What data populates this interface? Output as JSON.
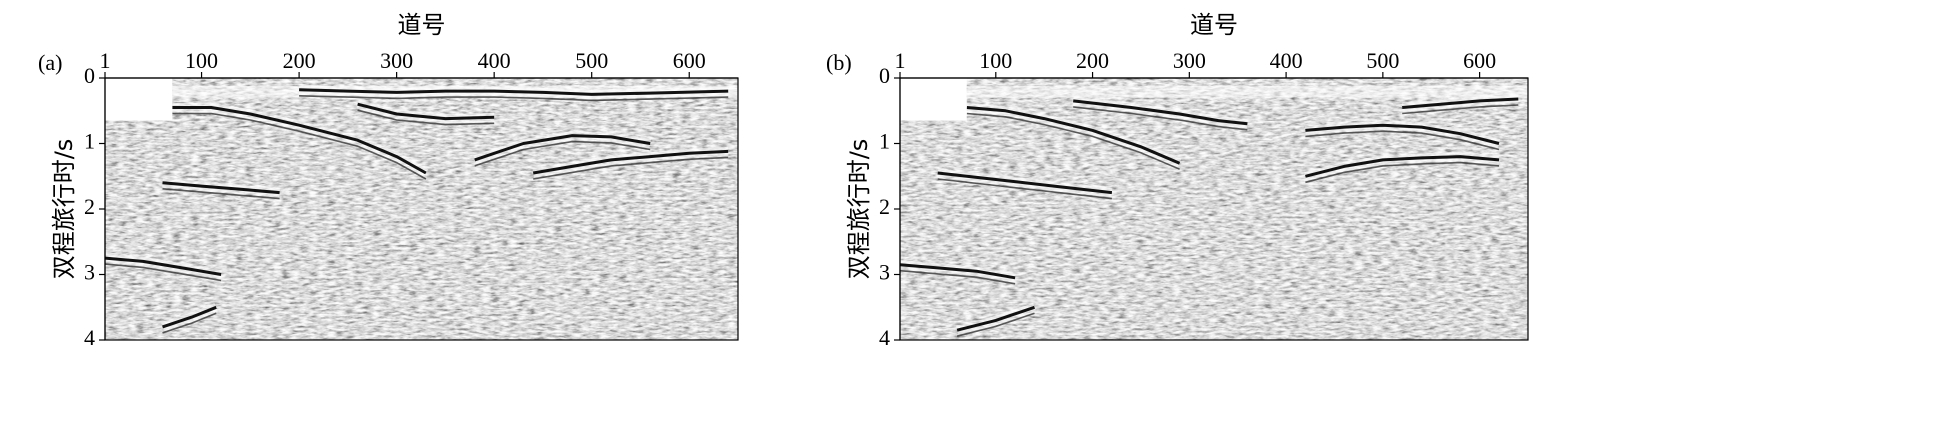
{
  "chart_data": [
    {
      "type": "heatmap",
      "panel_label": "(a)",
      "xlabel": "道号",
      "ylabel": "双程旅行时/s",
      "x_ticks": [
        1,
        100,
        200,
        300,
        400,
        500,
        600
      ],
      "y_ticks": [
        0,
        1,
        2,
        3,
        4
      ],
      "xlim": [
        1,
        650
      ],
      "ylim": [
        0,
        4
      ],
      "y_inverted": true,
      "colormap": "grayscale",
      "reflectors": [
        {
          "x": [
            70,
            110,
            150,
            200,
            260,
            300,
            330
          ],
          "y": [
            0.45,
            0.45,
            0.55,
            0.72,
            0.95,
            1.2,
            1.45
          ]
        },
        {
          "x": [
            260,
            300,
            350,
            400
          ],
          "y": [
            0.4,
            0.55,
            0.62,
            0.6
          ]
        },
        {
          "x": [
            380,
            430,
            480,
            520,
            560
          ],
          "y": [
            1.25,
            1.0,
            0.88,
            0.9,
            1.0
          ]
        },
        {
          "x": [
            440,
            480,
            520,
            560,
            600,
            640
          ],
          "y": [
            1.45,
            1.35,
            1.25,
            1.2,
            1.15,
            1.12
          ]
        },
        {
          "x": [
            200,
            250,
            300,
            350,
            400,
            450,
            500,
            560,
            640
          ],
          "y": [
            0.18,
            0.2,
            0.22,
            0.2,
            0.2,
            0.22,
            0.25,
            0.23,
            0.2
          ]
        },
        {
          "x": [
            1,
            40,
            80,
            120
          ],
          "y": [
            2.75,
            2.8,
            2.9,
            3.0
          ]
        },
        {
          "x": [
            60,
            90,
            115
          ],
          "y": [
            3.8,
            3.65,
            3.5
          ]
        },
        {
          "x": [
            60,
            100,
            140,
            180
          ],
          "y": [
            1.6,
            1.65,
            1.7,
            1.75
          ]
        }
      ],
      "blank_region": {
        "x": [
          1,
          70
        ],
        "y": [
          0,
          0.65
        ]
      }
    },
    {
      "type": "heatmap",
      "panel_label": "(b)",
      "xlabel": "道号",
      "ylabel": "双程旅行时/s",
      "x_ticks": [
        1,
        100,
        200,
        300,
        400,
        500,
        600
      ],
      "y_ticks": [
        0,
        1,
        2,
        3,
        4
      ],
      "xlim": [
        1,
        650
      ],
      "ylim": [
        0,
        4
      ],
      "y_inverted": true,
      "colormap": "grayscale",
      "reflectors": [
        {
          "x": [
            70,
            110,
            150,
            200,
            250,
            290
          ],
          "y": [
            0.45,
            0.5,
            0.62,
            0.8,
            1.05,
            1.3
          ]
        },
        {
          "x": [
            180,
            240,
            290,
            330,
            360
          ],
          "y": [
            0.35,
            0.45,
            0.55,
            0.65,
            0.7
          ]
        },
        {
          "x": [
            420,
            460,
            500,
            540,
            580,
            620
          ],
          "y": [
            0.8,
            0.75,
            0.72,
            0.75,
            0.85,
            1.0
          ]
        },
        {
          "x": [
            420,
            460,
            500,
            540,
            580,
            620
          ],
          "y": [
            1.5,
            1.35,
            1.25,
            1.22,
            1.2,
            1.25
          ]
        },
        {
          "x": [
            520,
            560,
            600,
            640
          ],
          "y": [
            0.45,
            0.4,
            0.35,
            0.32
          ]
        },
        {
          "x": [
            1,
            40,
            80,
            120
          ],
          "y": [
            2.85,
            2.9,
            2.95,
            3.05
          ]
        },
        {
          "x": [
            60,
            100,
            140
          ],
          "y": [
            3.85,
            3.7,
            3.5
          ]
        },
        {
          "x": [
            40,
            100,
            160,
            220
          ],
          "y": [
            1.45,
            1.55,
            1.65,
            1.75
          ]
        }
      ],
      "blank_region": {
        "x": [
          1,
          70
        ],
        "y": [
          0,
          0.65
        ]
      }
    }
  ]
}
